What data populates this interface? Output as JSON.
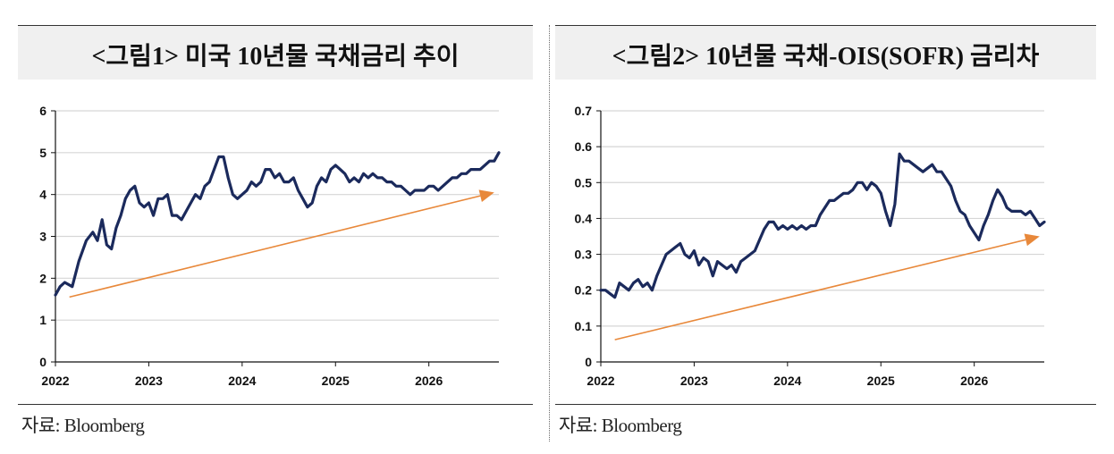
{
  "charts": [
    {
      "title": "<그림1> 미국 10년물 국채금리 추이",
      "source": "자료: Bloomberg",
      "chart_data": {
        "type": "line",
        "title": "<그림1> 미국 10년물 국채금리 추이",
        "xlabel": "",
        "ylabel": "",
        "x_ticks": [
          "2022",
          "2023",
          "2024",
          "2025",
          "2026"
        ],
        "y_ticks": [
          "0",
          "1",
          "2",
          "3",
          "4",
          "5",
          "6"
        ],
        "xlim": [
          2022.0,
          2026.75
        ],
        "ylim": [
          0,
          6
        ],
        "grid": "horizontal",
        "series": [
          {
            "color": "#1b2a5c",
            "x": [
              2022.0,
              2022.05,
              2022.1,
              2022.18,
              2022.25,
              2022.33,
              2022.4,
              2022.45,
              2022.5,
              2022.55,
              2022.6,
              2022.65,
              2022.7,
              2022.75,
              2022.8,
              2022.85,
              2022.9,
              2022.95,
              2023.0,
              2023.05,
              2023.1,
              2023.15,
              2023.2,
              2023.25,
              2023.3,
              2023.35,
              2023.4,
              2023.45,
              2023.5,
              2023.55,
              2023.6,
              2023.65,
              2023.7,
              2023.75,
              2023.8,
              2023.85,
              2023.9,
              2023.95,
              2024.0,
              2024.05,
              2024.1,
              2024.15,
              2024.2,
              2024.25,
              2024.3,
              2024.35,
              2024.4,
              2024.45,
              2024.5,
              2024.55,
              2024.6,
              2024.65,
              2024.7,
              2024.75,
              2024.8,
              2024.85,
              2024.9,
              2024.95,
              2025.0,
              2025.05,
              2025.1,
              2025.15,
              2025.2,
              2025.25,
              2025.3,
              2025.35,
              2025.4,
              2025.45,
              2025.5,
              2025.55,
              2025.6,
              2025.65,
              2025.7,
              2025.75,
              2025.8,
              2025.85,
              2025.9,
              2025.95,
              2026.0,
              2026.05,
              2026.1,
              2026.15,
              2026.2,
              2026.25,
              2026.3,
              2026.35,
              2026.4,
              2026.45,
              2026.5,
              2026.55,
              2026.6,
              2026.65,
              2026.7,
              2026.75
            ],
            "values": [
              1.6,
              1.8,
              1.9,
              1.8,
              2.4,
              2.9,
              3.1,
              2.9,
              3.4,
              2.8,
              2.7,
              3.2,
              3.5,
              3.9,
              4.1,
              4.2,
              3.8,
              3.7,
              3.8,
              3.5,
              3.9,
              3.9,
              4.0,
              3.5,
              3.5,
              3.4,
              3.6,
              3.8,
              4.0,
              3.9,
              4.2,
              4.3,
              4.6,
              4.9,
              4.9,
              4.4,
              4.0,
              3.9,
              4.0,
              4.1,
              4.3,
              4.2,
              4.3,
              4.6,
              4.6,
              4.4,
              4.5,
              4.3,
              4.3,
              4.4,
              4.1,
              3.9,
              3.7,
              3.8,
              4.2,
              4.4,
              4.3,
              4.6,
              4.7,
              4.6,
              4.5,
              4.3,
              4.4,
              4.3,
              4.5,
              4.4,
              4.5,
              4.4,
              4.4,
              4.3,
              4.3,
              4.2,
              4.2,
              4.1,
              4.0,
              4.1,
              4.1,
              4.1,
              4.2,
              4.2,
              4.1,
              4.2,
              4.3,
              4.4,
              4.4,
              4.5,
              4.5,
              4.6,
              4.6,
              4.6,
              4.7,
              4.8,
              4.8,
              5.0
            ]
          }
        ],
        "trend_arrow": {
          "color": "#e8883a",
          "start": [
            2022.15,
            1.55
          ],
          "end": [
            2026.7,
            4.05
          ]
        }
      }
    },
    {
      "title": "<그림2> 10년물 국채-OIS(SOFR) 금리차",
      "source": "자료: Bloomberg",
      "chart_data": {
        "type": "line",
        "title": "<그림2> 10년물 국채-OIS(SOFR) 금리차",
        "xlabel": "",
        "ylabel": "",
        "x_ticks": [
          "2022",
          "2023",
          "2024",
          "2025",
          "2026"
        ],
        "y_ticks": [
          "0",
          "0.1",
          "0.2",
          "0.3",
          "0.4",
          "0.5",
          "0.6",
          "0.7"
        ],
        "xlim": [
          2022.0,
          2026.75
        ],
        "ylim": [
          0,
          0.7
        ],
        "grid": "horizontal",
        "series": [
          {
            "color": "#1b2a5c",
            "x": [
              2022.0,
              2022.05,
              2022.1,
              2022.15,
              2022.2,
              2022.25,
              2022.3,
              2022.35,
              2022.4,
              2022.45,
              2022.5,
              2022.55,
              2022.6,
              2022.65,
              2022.7,
              2022.75,
              2022.8,
              2022.85,
              2022.9,
              2022.95,
              2023.0,
              2023.05,
              2023.1,
              2023.15,
              2023.2,
              2023.25,
              2023.3,
              2023.35,
              2023.4,
              2023.45,
              2023.5,
              2023.55,
              2023.6,
              2023.65,
              2023.7,
              2023.75,
              2023.8,
              2023.85,
              2023.9,
              2023.95,
              2024.0,
              2024.05,
              2024.1,
              2024.15,
              2024.2,
              2024.25,
              2024.3,
              2024.35,
              2024.4,
              2024.45,
              2024.5,
              2024.55,
              2024.6,
              2024.65,
              2024.7,
              2024.75,
              2024.8,
              2024.85,
              2024.9,
              2024.95,
              2025.0,
              2025.05,
              2025.1,
              2025.15,
              2025.2,
              2025.25,
              2025.3,
              2025.35,
              2025.4,
              2025.45,
              2025.5,
              2025.55,
              2025.6,
              2025.65,
              2025.7,
              2025.75,
              2025.8,
              2025.85,
              2025.9,
              2025.95,
              2026.0,
              2026.05,
              2026.1,
              2026.15,
              2026.2,
              2026.25,
              2026.3,
              2026.35,
              2026.4,
              2026.45,
              2026.5,
              2026.55,
              2026.6,
              2026.65,
              2026.7,
              2026.75
            ],
            "values": [
              0.2,
              0.2,
              0.19,
              0.18,
              0.22,
              0.21,
              0.2,
              0.22,
              0.23,
              0.21,
              0.22,
              0.2,
              0.24,
              0.27,
              0.3,
              0.31,
              0.32,
              0.33,
              0.3,
              0.29,
              0.31,
              0.27,
              0.29,
              0.28,
              0.24,
              0.28,
              0.27,
              0.26,
              0.27,
              0.25,
              0.28,
              0.29,
              0.3,
              0.31,
              0.34,
              0.37,
              0.39,
              0.39,
              0.37,
              0.38,
              0.37,
              0.38,
              0.37,
              0.38,
              0.37,
              0.38,
              0.38,
              0.41,
              0.43,
              0.45,
              0.45,
              0.46,
              0.47,
              0.47,
              0.48,
              0.5,
              0.5,
              0.48,
              0.5,
              0.49,
              0.47,
              0.42,
              0.38,
              0.44,
              0.58,
              0.56,
              0.56,
              0.55,
              0.54,
              0.53,
              0.54,
              0.55,
              0.53,
              0.53,
              0.51,
              0.49,
              0.45,
              0.42,
              0.41,
              0.38,
              0.36,
              0.34,
              0.38,
              0.41,
              0.45,
              0.48,
              0.46,
              0.43,
              0.42,
              0.42,
              0.42,
              0.41,
              0.42,
              0.4,
              0.38,
              0.39
            ]
          }
        ],
        "trend_arrow": {
          "color": "#e8883a",
          "start": [
            2022.15,
            0.062
          ],
          "end": [
            2026.7,
            0.35
          ]
        }
      }
    }
  ]
}
